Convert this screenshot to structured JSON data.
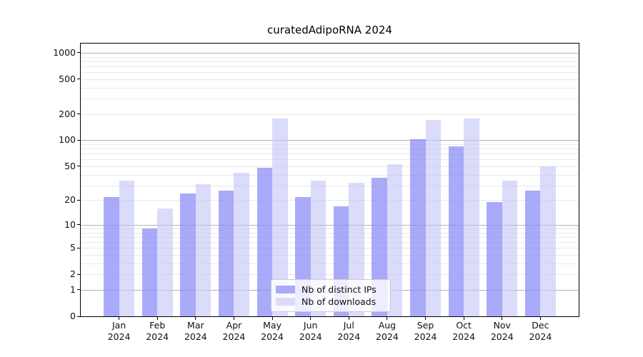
{
  "title": "curatedAdipoRNA 2024",
  "chart_data": {
    "type": "bar",
    "title": "curatedAdipoRNA 2024",
    "xlabel": "",
    "ylabel": "",
    "year_label": "2024",
    "months": [
      "Jan",
      "Feb",
      "Mar",
      "Apr",
      "May",
      "Jun",
      "Jul",
      "Aug",
      "Sep",
      "Oct",
      "Nov",
      "Dec"
    ],
    "categories": [
      "Jan 2024",
      "Feb 2024",
      "Mar 2024",
      "Apr 2024",
      "May 2024",
      "Jun 2024",
      "Jul 2024",
      "Aug 2024",
      "Sep 2024",
      "Oct 2024",
      "Nov 2024",
      "Dec 2024"
    ],
    "series": [
      {
        "name": "Nb of distinct IPs",
        "color": "#aaaaf8",
        "fill": "rgba(137,137,248,0.72)",
        "values": [
          22,
          9,
          24,
          26,
          48,
          22,
          17,
          37,
          103,
          85,
          19,
          26
        ]
      },
      {
        "name": "Nb of downloads",
        "color": "#dbdbf9",
        "fill": "rgba(195,195,247,0.60)",
        "values": [
          34,
          16,
          31,
          42,
          177,
          34,
          32,
          53,
          171,
          177,
          34,
          50
        ]
      }
    ],
    "yscale": "log1p",
    "yticks": [
      0,
      1,
      2,
      5,
      10,
      20,
      50,
      100,
      200,
      500,
      1000
    ],
    "ylim": [
      0,
      1280
    ],
    "grid": {
      "major": [
        1,
        10,
        100,
        1000
      ],
      "minor": [
        2,
        3,
        4,
        5,
        6,
        7,
        8,
        9,
        20,
        30,
        40,
        50,
        60,
        70,
        80,
        90,
        200,
        300,
        400,
        500,
        600,
        700,
        800,
        900
      ]
    },
    "legend_position": "lower center"
  },
  "colors": {
    "background": "#ffffff",
    "grid_major": "#b3b3b3",
    "grid_minor": "#e8e8e8",
    "axis": "#000000",
    "text": "#111111",
    "legend_border": "#cccccc"
  }
}
